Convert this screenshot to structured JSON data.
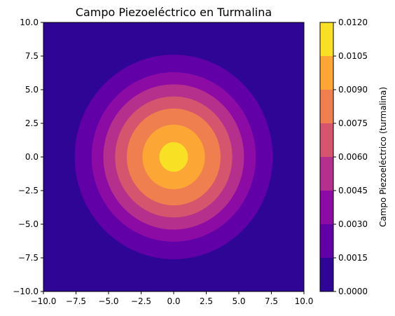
{
  "chart_data": {
    "type": "contourf",
    "title": "Campo Piezoeléctrico en Turmalina",
    "xlabel": "",
    "ylabel": "",
    "xlim": [
      -10,
      10
    ],
    "ylim": [
      -10,
      10
    ],
    "x_ticks": [
      "−10.0",
      "−7.5",
      "−5.0",
      "−2.5",
      "0.0",
      "2.5",
      "5.0",
      "7.5",
      "10.0"
    ],
    "y_ticks": [
      "−10.0",
      "−7.5",
      "−5.0",
      "−2.5",
      "0.0",
      "2.5",
      "5.0",
      "7.5",
      "10.0"
    ],
    "colorbar": {
      "label": "Campo Piezoeléctrico (turmalina)",
      "levels": [
        0.0,
        0.0015,
        0.003,
        0.0045,
        0.006,
        0.0075,
        0.009,
        0.0105,
        0.012
      ],
      "tick_labels": [
        "0.0000",
        "0.0015",
        "0.0030",
        "0.0045",
        "0.0060",
        "0.0075",
        "0.0090",
        "0.0105",
        "0.0120"
      ],
      "colors": [
        "#2f0596",
        "#6100a7",
        "#8c0ba5",
        "#b52f8c",
        "#d5546e",
        "#f07f4f",
        "#fca636",
        "#f8e125"
      ]
    },
    "contour_boundaries": [
      {
        "level": 0.0015,
        "radius": 7.6
      },
      {
        "level": 0.003,
        "radius": 6.3
      },
      {
        "level": 0.0045,
        "radius": 5.4
      },
      {
        "level": 0.006,
        "radius": 4.5
      },
      {
        "level": 0.0075,
        "radius": 3.6
      },
      {
        "level": 0.009,
        "radius": 2.4
      },
      {
        "level": 0.0105,
        "radius": 1.1
      }
    ],
    "grid": false,
    "center": [
      0,
      0
    ]
  }
}
